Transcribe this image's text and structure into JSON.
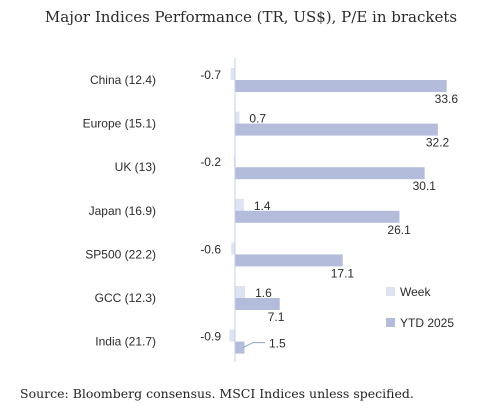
{
  "chart_data": {
    "type": "bar",
    "orientation": "horizontal",
    "title": "Major Indices Performance (TR, US$), P/E in brackets",
    "categories": [
      "China (12.4)",
      "Europe (15.1)",
      "UK (13)",
      "Japan (16.9)",
      "SP500 (22.2)",
      "GCC (12.3)",
      "India (21.7)"
    ],
    "series": [
      {
        "name": "Week",
        "values": [
          -0.7,
          0.7,
          -0.2,
          1.4,
          -0.6,
          1.6,
          -0.9
        ],
        "color": "#dde3f3"
      },
      {
        "name": "YTD 2025",
        "values": [
          33.6,
          32.2,
          30.1,
          26.1,
          17.1,
          7.1,
          1.5
        ],
        "color": "#b3bcdb"
      }
    ],
    "legend_position": "right",
    "grid": false
  },
  "footer": {
    "source": "Source: Bloomberg consensus. MSCI Indices unless specified."
  }
}
